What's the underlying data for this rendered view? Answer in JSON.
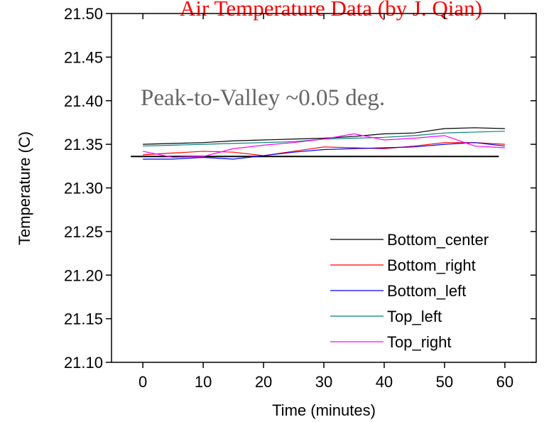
{
  "chart_data": {
    "type": "line",
    "title": "Air Temperature Data (by J. Qian)",
    "annotation": "Peak-to-Valley ~0.05 deg.",
    "x_label": "Time (minutes)",
    "y_label": "Temperature (C)",
    "x": [
      0,
      5,
      10,
      15,
      20,
      25,
      30,
      35,
      40,
      45,
      50,
      55,
      60
    ],
    "series": [
      {
        "name": "Bottom_center",
        "color": "#000000",
        "values": [
          21.35,
          21.351,
          21.352,
          21.354,
          21.355,
          21.356,
          21.357,
          21.359,
          21.362,
          21.363,
          21.368,
          21.369,
          21.368
        ]
      },
      {
        "name": "Bottom_right",
        "color": "#ff0000",
        "values": [
          21.338,
          21.34,
          21.342,
          21.341,
          21.337,
          21.342,
          21.347,
          21.346,
          21.345,
          21.348,
          21.352,
          21.352,
          21.35
        ]
      },
      {
        "name": "Bottom_left",
        "color": "#0000ff",
        "values": [
          21.333,
          21.333,
          21.335,
          21.333,
          21.337,
          21.341,
          21.344,
          21.345,
          21.346,
          21.347,
          21.35,
          21.352,
          21.348
        ]
      },
      {
        "name": "Top_left",
        "color": "#008080",
        "values": [
          21.348,
          21.349,
          21.35,
          21.351,
          21.352,
          21.353,
          21.356,
          21.357,
          21.358,
          21.36,
          21.363,
          21.364,
          21.365
        ]
      },
      {
        "name": "Top_right",
        "color": "#ff00ff",
        "values": [
          21.342,
          21.335,
          21.336,
          21.345,
          21.349,
          21.352,
          21.356,
          21.362,
          21.355,
          21.357,
          21.36,
          21.348,
          21.346
        ]
      }
    ],
    "reference_line": {
      "color": "#000000",
      "x": [
        -2,
        59
      ],
      "y": 21.336
    },
    "xlim": [
      -5.2,
      65.2
    ],
    "ylim": [
      21.1,
      21.5
    ],
    "xticks": [
      0,
      10,
      20,
      30,
      40,
      50,
      60
    ],
    "yticks": [
      {
        "value": 21.1,
        "label": "21.10"
      },
      21.15,
      {
        "value": 21.2,
        "label": "21.20"
      },
      21.25,
      {
        "value": 21.3,
        "label": "21.30"
      },
      21.35,
      {
        "value": 21.4,
        "label": "21.40"
      },
      21.45,
      {
        "value": 21.5,
        "label": "21.50"
      }
    ],
    "legend": "lower right"
  }
}
